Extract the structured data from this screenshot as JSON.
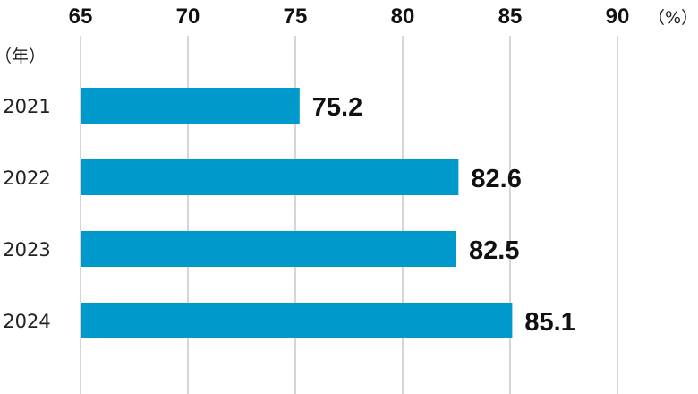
{
  "chart_data": {
    "type": "bar",
    "orientation": "horizontal",
    "categories": [
      "2021",
      "2022",
      "2023",
      "2024"
    ],
    "values": [
      75.2,
      82.6,
      82.5,
      85.1
    ],
    "value_labels": [
      "75.2",
      "82.6",
      "82.5",
      "85.1"
    ],
    "xlim": [
      65,
      90
    ],
    "xticks": [
      "65",
      "70",
      "75",
      "80",
      "85",
      "90"
    ],
    "x_unit": "（%）",
    "y_unit": "（年）",
    "grid": true,
    "bar_color": "#0099cc"
  }
}
